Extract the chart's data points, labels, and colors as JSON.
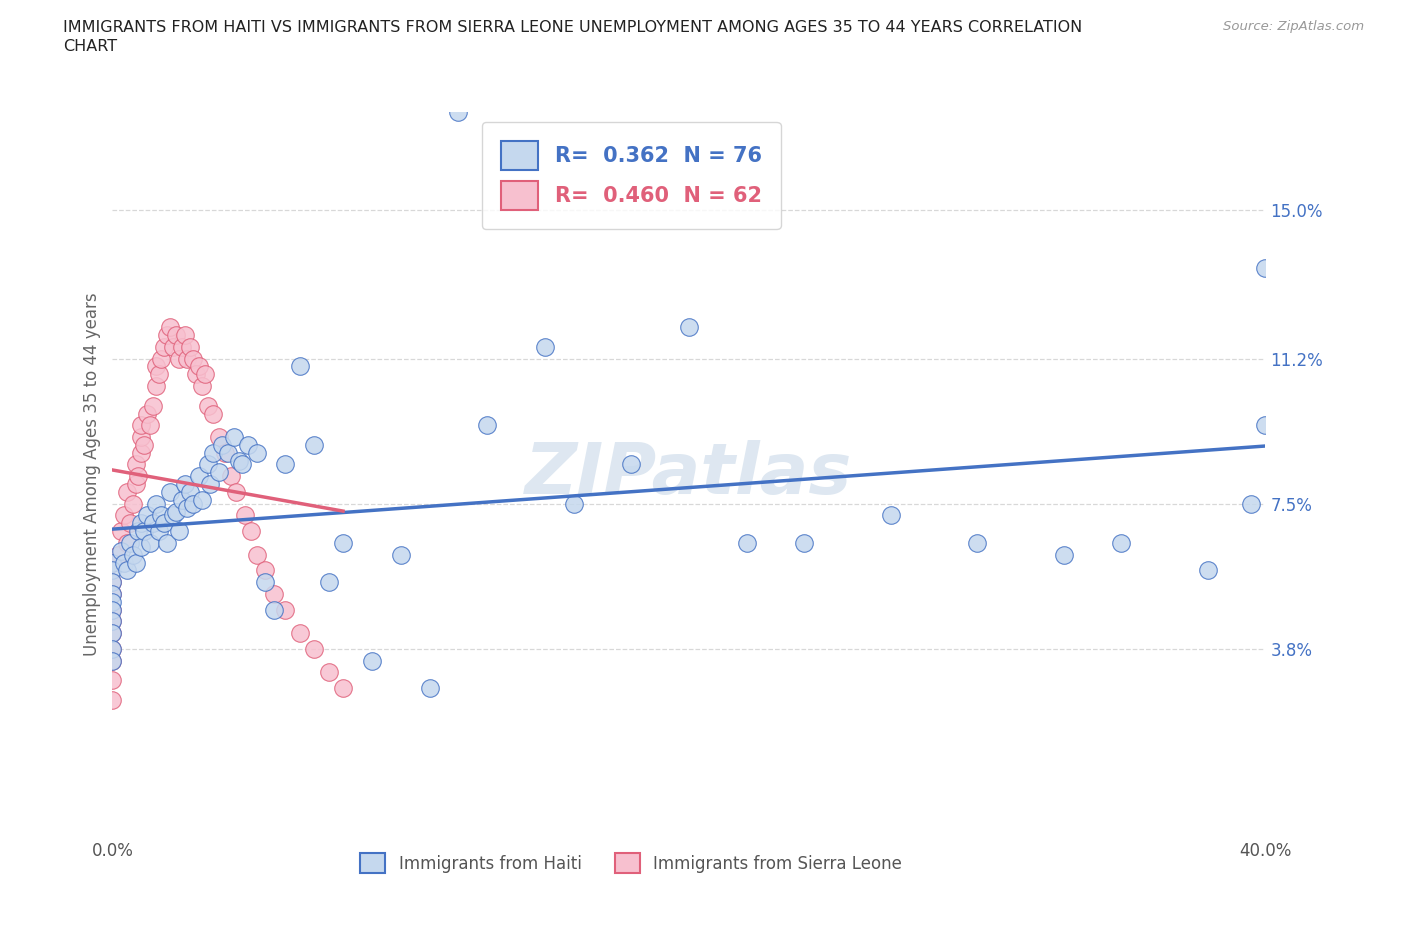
{
  "title_line1": "IMMIGRANTS FROM HAITI VS IMMIGRANTS FROM SIERRA LEONE UNEMPLOYMENT AMONG AGES 35 TO 44 YEARS CORRELATION",
  "title_line2": "CHART",
  "source": "Source: ZipAtlas.com",
  "ylabel": "Unemployment Among Ages 35 to 44 years",
  "xlim": [
    0.0,
    0.4
  ],
  "ylim": [
    -0.01,
    0.175
  ],
  "x_tick_positions": [
    0.0,
    0.1,
    0.2,
    0.3,
    0.4
  ],
  "x_tick_labels": [
    "0.0%",
    "",
    "",
    "",
    "40.0%"
  ],
  "y_tick_positions": [
    0.038,
    0.075,
    0.112,
    0.15
  ],
  "y_tick_labels": [
    "3.8%",
    "7.5%",
    "11.2%",
    "15.0%"
  ],
  "watermark": "ZIPatlas",
  "bottom_legend_labels": [
    "Immigrants from Haiti",
    "Immigrants from Sierra Leone"
  ],
  "haiti_R": "0.362",
  "haiti_N": "76",
  "sl_R": "0.460",
  "sl_N": "62",
  "haiti_face_color": "#c5d8ee",
  "haiti_edge_color": "#4472c4",
  "sl_face_color": "#f7c0cf",
  "sl_edge_color": "#e0607a",
  "haiti_line_color": "#4472c4",
  "sl_line_color": "#e0607a",
  "background_color": "#ffffff",
  "grid_color": "#d8d8d8",
  "title_color": "#222222",
  "axis_label_color": "#666666",
  "tick_color_y": "#4472c4",
  "tick_color_x": "#555555",
  "watermark_color": "#c8d8e8",
  "haiti_x": [
    0.0,
    0.0,
    0.0,
    0.0,
    0.0,
    0.0,
    0.0,
    0.0,
    0.0,
    0.0,
    0.003,
    0.004,
    0.005,
    0.006,
    0.007,
    0.008,
    0.009,
    0.01,
    0.01,
    0.011,
    0.012,
    0.013,
    0.014,
    0.015,
    0.016,
    0.017,
    0.018,
    0.019,
    0.02,
    0.021,
    0.022,
    0.023,
    0.024,
    0.025,
    0.026,
    0.027,
    0.028,
    0.03,
    0.031,
    0.033,
    0.034,
    0.035,
    0.037,
    0.038,
    0.04,
    0.042,
    0.044,
    0.045,
    0.047,
    0.05,
    0.053,
    0.056,
    0.06,
    0.065,
    0.07,
    0.075,
    0.08,
    0.09,
    0.1,
    0.11,
    0.12,
    0.13,
    0.15,
    0.16,
    0.18,
    0.2,
    0.22,
    0.24,
    0.27,
    0.3,
    0.33,
    0.35,
    0.38,
    0.395,
    0.4,
    0.4
  ],
  "haiti_y": [
    0.06,
    0.058,
    0.055,
    0.052,
    0.05,
    0.048,
    0.045,
    0.042,
    0.038,
    0.035,
    0.063,
    0.06,
    0.058,
    0.065,
    0.062,
    0.06,
    0.068,
    0.07,
    0.064,
    0.068,
    0.072,
    0.065,
    0.07,
    0.075,
    0.068,
    0.072,
    0.07,
    0.065,
    0.078,
    0.072,
    0.073,
    0.068,
    0.076,
    0.08,
    0.074,
    0.078,
    0.075,
    0.082,
    0.076,
    0.085,
    0.08,
    0.088,
    0.083,
    0.09,
    0.088,
    0.092,
    0.086,
    0.085,
    0.09,
    0.088,
    0.055,
    0.048,
    0.085,
    0.11,
    0.09,
    0.055,
    0.065,
    0.035,
    0.062,
    0.028,
    0.175,
    0.095,
    0.115,
    0.075,
    0.085,
    0.12,
    0.065,
    0.065,
    0.072,
    0.065,
    0.062,
    0.065,
    0.058,
    0.075,
    0.135,
    0.095
  ],
  "sl_x": [
    0.0,
    0.0,
    0.0,
    0.0,
    0.0,
    0.0,
    0.0,
    0.0,
    0.0,
    0.0,
    0.002,
    0.003,
    0.004,
    0.005,
    0.005,
    0.006,
    0.007,
    0.008,
    0.008,
    0.009,
    0.01,
    0.01,
    0.01,
    0.011,
    0.012,
    0.013,
    0.014,
    0.015,
    0.015,
    0.016,
    0.017,
    0.018,
    0.019,
    0.02,
    0.021,
    0.022,
    0.023,
    0.024,
    0.025,
    0.026,
    0.027,
    0.028,
    0.029,
    0.03,
    0.031,
    0.032,
    0.033,
    0.035,
    0.037,
    0.039,
    0.041,
    0.043,
    0.046,
    0.048,
    0.05,
    0.053,
    0.056,
    0.06,
    0.065,
    0.07,
    0.075,
    0.08
  ],
  "sl_y": [
    0.06,
    0.055,
    0.052,
    0.048,
    0.045,
    0.042,
    0.038,
    0.035,
    0.03,
    0.025,
    0.062,
    0.068,
    0.072,
    0.065,
    0.078,
    0.07,
    0.075,
    0.08,
    0.085,
    0.082,
    0.088,
    0.092,
    0.095,
    0.09,
    0.098,
    0.095,
    0.1,
    0.105,
    0.11,
    0.108,
    0.112,
    0.115,
    0.118,
    0.12,
    0.115,
    0.118,
    0.112,
    0.115,
    0.118,
    0.112,
    0.115,
    0.112,
    0.108,
    0.11,
    0.105,
    0.108,
    0.1,
    0.098,
    0.092,
    0.088,
    0.082,
    0.078,
    0.072,
    0.068,
    0.062,
    0.058,
    0.052,
    0.048,
    0.042,
    0.038,
    0.032,
    0.028
  ]
}
